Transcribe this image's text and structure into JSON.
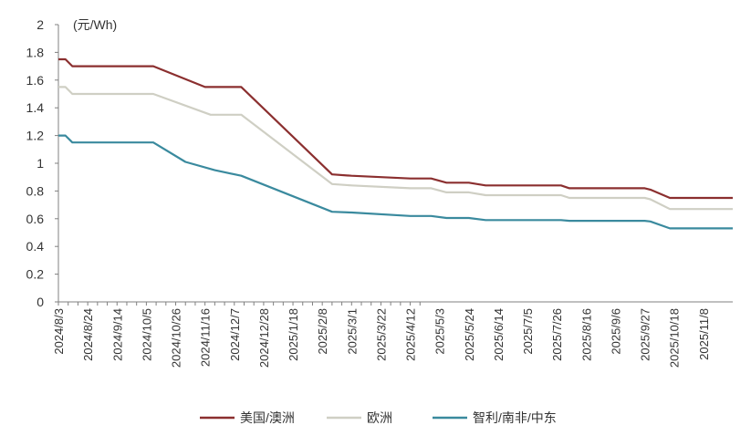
{
  "chart_data": {
    "type": "line",
    "unit_label": "(元/Wh)",
    "ylim": [
      0,
      2
    ],
    "y_ticks": [
      "0",
      "0.2",
      "0.4",
      "0.6",
      "0.8",
      "1",
      "1.2",
      "1.4",
      "1.6",
      "1.8",
      "2"
    ],
    "x_tick_labels": [
      "2024/8/3",
      "2024/8/24",
      "2024/9/14",
      "2024/10/5",
      "2024/10/26",
      "2024/11/16",
      "2024/12/7",
      "2024/12/28",
      "2025/1/18",
      "2025/2/8",
      "2025/3/1",
      "2025/3/22",
      "2025/4/12",
      "2025/5/3",
      "2025/5/24",
      "2025/6/14",
      "2025/7/5",
      "2025/7/26",
      "2025/8/16",
      "2025/9/6",
      "2025/9/27",
      "2025/10/18",
      "2025/11/8"
    ],
    "x_range": [
      "2024/8/3",
      "2025/11/29"
    ],
    "grid": false,
    "legend_position": "bottom",
    "series": [
      {
        "name": "美国/澳洲",
        "color": "#8B2F2F",
        "points": [
          [
            "2024/8/3",
            1.75
          ],
          [
            "2024/8/8",
            1.75
          ],
          [
            "2024/8/13",
            1.7
          ],
          [
            "2024/10/10",
            1.7
          ],
          [
            "2024/11/16",
            1.55
          ],
          [
            "2024/12/12",
            1.55
          ],
          [
            "2025/2/15",
            0.92
          ],
          [
            "2025/3/1",
            0.91
          ],
          [
            "2025/4/12",
            0.89
          ],
          [
            "2025/4/27",
            0.89
          ],
          [
            "2025/5/8",
            0.86
          ],
          [
            "2025/5/24",
            0.86
          ],
          [
            "2025/6/5",
            0.84
          ],
          [
            "2025/7/29",
            0.84
          ],
          [
            "2025/8/4",
            0.82
          ],
          [
            "2025/9/27",
            0.82
          ],
          [
            "2025/10/1",
            0.81
          ],
          [
            "2025/10/15",
            0.75
          ],
          [
            "2025/11/29",
            0.75
          ]
        ]
      },
      {
        "name": "欧洲",
        "color": "#CFCFC4",
        "points": [
          [
            "2024/8/3",
            1.55
          ],
          [
            "2024/8/8",
            1.55
          ],
          [
            "2024/8/13",
            1.5
          ],
          [
            "2024/10/10",
            1.5
          ],
          [
            "2024/11/20",
            1.35
          ],
          [
            "2024/12/12",
            1.35
          ],
          [
            "2025/2/15",
            0.85
          ],
          [
            "2025/3/1",
            0.84
          ],
          [
            "2025/4/12",
            0.82
          ],
          [
            "2025/4/27",
            0.82
          ],
          [
            "2025/5/8",
            0.79
          ],
          [
            "2025/5/24",
            0.79
          ],
          [
            "2025/6/5",
            0.77
          ],
          [
            "2025/7/29",
            0.77
          ],
          [
            "2025/8/4",
            0.75
          ],
          [
            "2025/9/27",
            0.75
          ],
          [
            "2025/10/1",
            0.74
          ],
          [
            "2025/10/15",
            0.67
          ],
          [
            "2025/11/29",
            0.67
          ]
        ]
      },
      {
        "name": "智利/南非/中东",
        "color": "#3A8A9E",
        "points": [
          [
            "2024/8/3",
            1.2
          ],
          [
            "2024/8/8",
            1.2
          ],
          [
            "2024/8/13",
            1.15
          ],
          [
            "2024/10/10",
            1.15
          ],
          [
            "2024/11/2",
            1.01
          ],
          [
            "2024/11/23",
            0.95
          ],
          [
            "2024/12/12",
            0.91
          ],
          [
            "2025/2/15",
            0.65
          ],
          [
            "2025/3/1",
            0.645
          ],
          [
            "2025/4/12",
            0.62
          ],
          [
            "2025/4/27",
            0.62
          ],
          [
            "2025/5/8",
            0.605
          ],
          [
            "2025/5/24",
            0.605
          ],
          [
            "2025/6/5",
            0.59
          ],
          [
            "2025/7/29",
            0.59
          ],
          [
            "2025/8/4",
            0.585
          ],
          [
            "2025/9/27",
            0.585
          ],
          [
            "2025/10/1",
            0.58
          ],
          [
            "2025/10/15",
            0.53
          ],
          [
            "2025/11/29",
            0.53
          ]
        ]
      }
    ]
  }
}
